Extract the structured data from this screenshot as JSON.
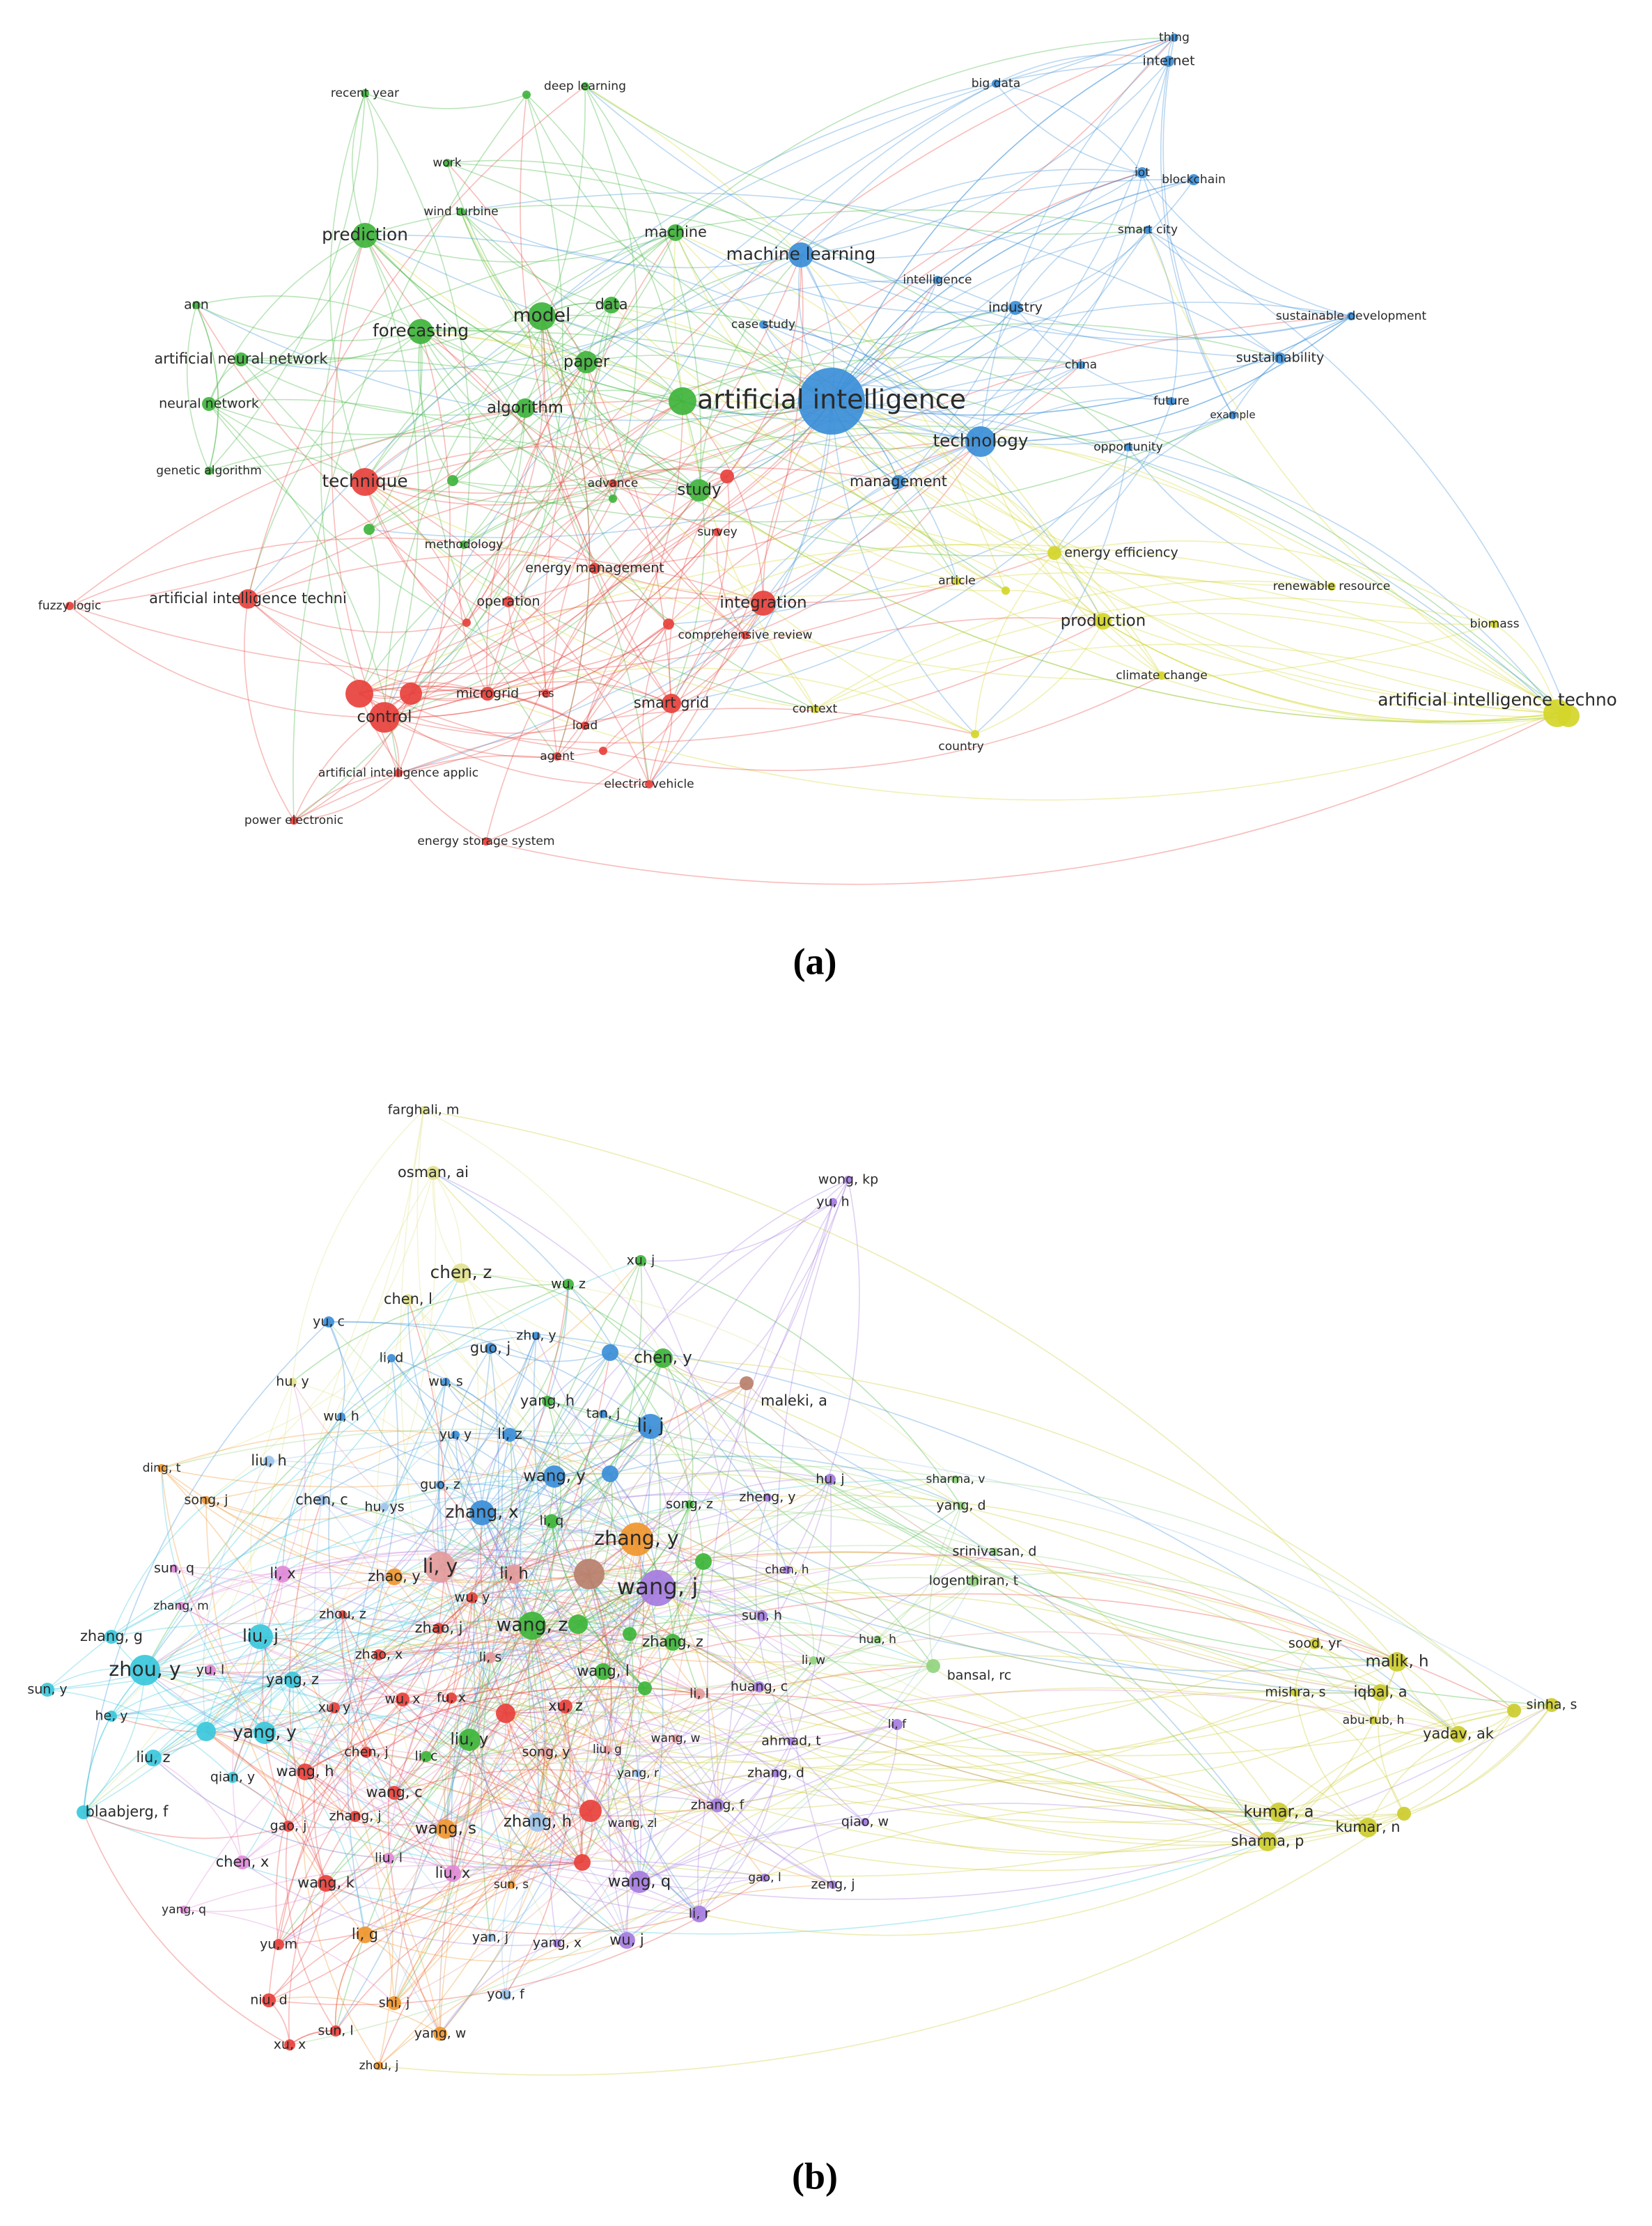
{
  "panels": [
    {
      "caption": "(a)",
      "clusters": [
        {
          "color": "#3fb43c",
          "nodes": [
            "recent year",
            "deep learning",
            "work",
            "wind turbine",
            "prediction",
            "machine",
            "ann",
            "forecasting",
            "model",
            "data",
            "artificial neural network",
            "paper",
            "neural network",
            "algorithm",
            "genetic algorithm",
            "study",
            "methodology"
          ]
        },
        {
          "color": "#e8413c",
          "nodes": [
            "technique",
            "advance",
            "survey",
            "energy management",
            "artificial intelligence techni",
            "fuzzy logic",
            "operation",
            "integration",
            "comprehensive review",
            "microgrid",
            "res",
            "control",
            "smart grid",
            "load",
            "agent",
            "artificial intelligence applic",
            "electric vehicle",
            "power electronic",
            "energy storage system"
          ]
        },
        {
          "color": "#3b8ed8",
          "nodes": [
            "thing",
            "internet",
            "big data",
            "iot",
            "blockchain",
            "smart city",
            "machine learning",
            "intelligence",
            "industry",
            "case study",
            "sustainable development",
            "china",
            "sustainability",
            "artificial intelligence",
            "future",
            "example",
            "technology",
            "opportunity",
            "management"
          ]
        },
        {
          "color": "#d4d62a",
          "nodes": [
            "energy efficiency",
            "article",
            "renewable resource",
            "production",
            "biomass",
            "climate change",
            "artificial intelligence techno",
            "context",
            "country"
          ]
        }
      ]
    },
    {
      "caption": "(b)",
      "clusters": [
        {
          "color": "#e2e28e",
          "nodes": [
            "farghali, m",
            "osman, ai",
            "chen, z",
            "chen, l",
            "hu, y"
          ]
        },
        {
          "color": "#3db53a",
          "nodes": [
            "xu, j",
            "wu, z",
            "chen, y",
            "yang, h",
            "li, q",
            "song, z",
            "wang, z",
            "zhang, z",
            "wang, l",
            "liu, y",
            "li, c"
          ]
        },
        {
          "color": "#3b8ed8",
          "nodes": [
            "yu, c",
            "zhu, y",
            "guo, j",
            "li, d",
            "wu, s",
            "wu, h",
            "tan, j",
            "li, j",
            "yu, y",
            "li, z",
            "wang, y",
            "zhang, x",
            "guo, z"
          ]
        },
        {
          "color": "#9cc3ea",
          "nodes": [
            "liu, h",
            "chen, c",
            "hu, ys",
            "zhang, h",
            "yan, j",
            "you, f",
            "yang, r"
          ]
        },
        {
          "color": "#e39b9b",
          "nodes": [
            "li, y",
            "li, h",
            "li, s",
            "li, l",
            "liu, g",
            "song, y",
            "wang, zl",
            "wang, w"
          ]
        },
        {
          "color": "#b8806c",
          "nodes": [
            "maleki, a"
          ]
        },
        {
          "color": "#a57ce0",
          "nodes": [
            "wong, kp",
            "yu, h",
            "hu, j",
            "zheng, y",
            "chen, h",
            "wang, j",
            "sun, h",
            "huang, c",
            "li, f",
            "ahmad, t",
            "zhang, d",
            "zhang, f",
            "qiao, w",
            "gao, l",
            "wang, q",
            "zeng, j",
            "li, r",
            "wu, j",
            "yang, x"
          ]
        },
        {
          "color": "#f0962e",
          "nodes": [
            "ding, t",
            "song, j",
            "zhang, y",
            "zhao, y",
            "wang, s",
            "sun, s",
            "li, g",
            "shi, j",
            "yang, w",
            "zhou, j"
          ]
        },
        {
          "color": "#3bc8dc",
          "nodes": [
            "zhang, g",
            "liu, j",
            "zhou, y",
            "sun, y",
            "he, y",
            "yang, z",
            "yang, y",
            "liu, z",
            "qian, y",
            "blaabjerg, f"
          ]
        },
        {
          "color": "#e08ad8",
          "nodes": [
            "sun, q",
            "li, x",
            "zhang, m",
            "yu, l",
            "chen, x",
            "yang, q",
            "liu, x",
            "liu, l"
          ]
        },
        {
          "color": "#e8413c",
          "nodes": [
            "zhou, z",
            "wu, y",
            "zhao, j",
            "zhao, x",
            "fu, x",
            "wu, x",
            "xu, z",
            "xu, y",
            "chen, j",
            "wang, h",
            "wang, c",
            "zhang, j",
            "gao, j",
            "wang, k",
            "yu, m",
            "niu, d",
            "sun, l",
            "xu, x"
          ]
        },
        {
          "color": "#93d47f",
          "nodes": [
            "sharma, v",
            "yang, d",
            "srinivasan, d",
            "logenthiran, t",
            "hua, h",
            "li, w",
            "bansal, rc"
          ]
        },
        {
          "color": "#cccc2e",
          "nodes": [
            "sood, yr",
            "malik, h",
            "mishra, s",
            "iqbal, a",
            "sinha, s",
            "abu-rub, h",
            "yadav, ak",
            "kumar, a",
            "kumar, n",
            "sharma, p"
          ]
        }
      ]
    }
  ]
}
